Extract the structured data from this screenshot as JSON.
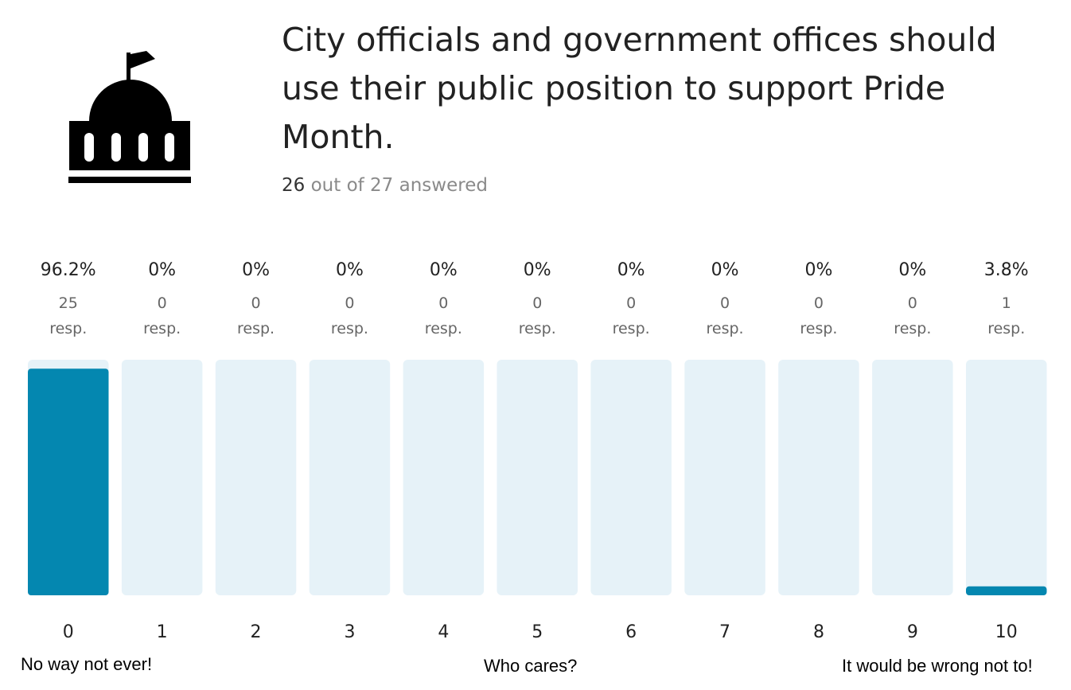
{
  "question": {
    "title": "City officials and government offices should use their public position to support Pride Month.",
    "answered_count": "26",
    "answered_suffix": " out of 27 answered"
  },
  "icon": "government-building-icon",
  "colors": {
    "fill": "#0487b0",
    "track": "#e6f2f8",
    "text": "#222222",
    "muted": "#8a8a8a"
  },
  "chart_data": {
    "type": "bar",
    "categories": [
      "0",
      "1",
      "2",
      "3",
      "4",
      "5",
      "6",
      "7",
      "8",
      "9",
      "10"
    ],
    "values": [
      96.2,
      0,
      0,
      0,
      0,
      0,
      0,
      0,
      0,
      0,
      3.8
    ],
    "percent_labels": [
      "96.2%",
      "0%",
      "0%",
      "0%",
      "0%",
      "0%",
      "0%",
      "0%",
      "0%",
      "0%",
      "3.8%"
    ],
    "responses": [
      "25",
      "0",
      "0",
      "0",
      "0",
      "0",
      "0",
      "0",
      "0",
      "0",
      "1"
    ],
    "response_unit": "resp.",
    "ylim": [
      0,
      100
    ]
  },
  "scale_labels": {
    "low": "No way not ever!",
    "mid": "Who cares?",
    "high": "It would be wrong not to!"
  }
}
